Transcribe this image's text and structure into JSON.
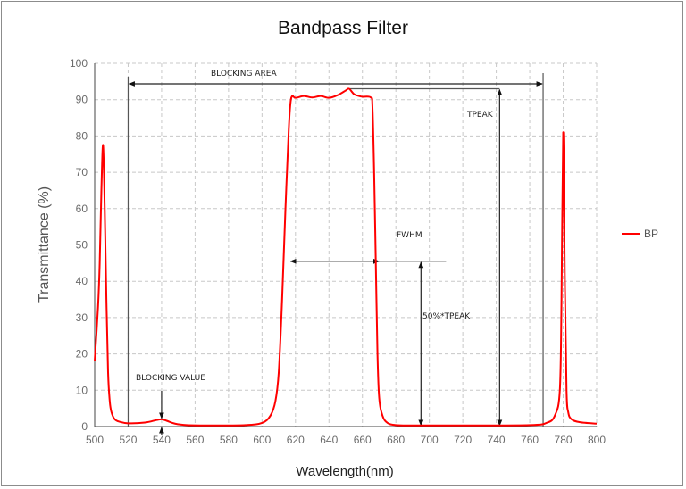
{
  "chart_data": {
    "type": "line",
    "title": "Bandpass Filter",
    "xlabel": "Wavelength(nm)",
    "ylabel": "Transmittance (%)",
    "xlim": [
      500,
      800
    ],
    "ylim": [
      0,
      100
    ],
    "xticks": [
      500,
      520,
      540,
      560,
      580,
      600,
      620,
      640,
      660,
      680,
      700,
      720,
      740,
      760,
      780,
      800
    ],
    "yticks": [
      0,
      10,
      20,
      30,
      40,
      50,
      60,
      70,
      80,
      90,
      100
    ],
    "grid": true,
    "legend": {
      "position": "right",
      "entries": [
        "BP"
      ]
    },
    "series": [
      {
        "name": "BP",
        "color": "#ff0000",
        "x": [
          500,
          502,
          503,
          504,
          505,
          506,
          507,
          508,
          509,
          510,
          512,
          515,
          520,
          530,
          537,
          540,
          543,
          548,
          555,
          570,
          590,
          600,
          605,
          608,
          610,
          612,
          614,
          616,
          617,
          618,
          620,
          625,
          630,
          635,
          640,
          645,
          650,
          652,
          655,
          658,
          660,
          665,
          666,
          667,
          668,
          669,
          670,
          672,
          675,
          680,
          690,
          720,
          760,
          770,
          775,
          778,
          779,
          780,
          781,
          782,
          783,
          785,
          790,
          800
        ],
        "y": [
          18,
          33,
          45,
          65,
          77.5,
          60,
          35,
          15,
          7,
          4,
          2,
          1.3,
          0.9,
          1.1,
          1.8,
          2.0,
          1.6,
          0.8,
          0.4,
          0.3,
          0.4,
          1.0,
          3,
          7,
          15,
          35,
          60,
          82,
          89,
          91,
          90.5,
          91,
          90.6,
          91,
          90.5,
          91.2,
          92.5,
          93,
          91.5,
          91,
          90.8,
          90.6,
          88,
          70,
          45,
          20,
          8,
          3,
          1,
          0.4,
          0.3,
          0.3,
          0.4,
          1,
          3,
          10,
          35,
          81,
          40,
          10,
          4,
          2,
          1.2,
          0.8
        ]
      }
    ],
    "annotations": [
      {
        "text": "BLOCKING AREA",
        "type": "double-arrow",
        "from": 520,
        "to": 768,
        "y": 94.5
      },
      {
        "text": "TPEAK",
        "type": "arrow",
        "x": 742,
        "from": 0,
        "to": 93
      },
      {
        "text": "FWHM",
        "type": "double-arrow",
        "from": 617,
        "to": 670,
        "y": 45.5
      },
      {
        "text": "50%*TPEAK",
        "type": "arrow",
        "x": 695,
        "from": 0,
        "to": 45.5
      },
      {
        "text": "BLOCKING VALUE",
        "type": "marker",
        "x": 540,
        "y": 2
      }
    ]
  },
  "labels": {
    "title": "Bandpass Filter",
    "xlabel": "Wavelength(nm)",
    "ylabel": "Transmittance (%)",
    "legend_bp": "BP",
    "blocking_area": "BLOCKING AREA",
    "tpeak": "TPEAK",
    "fwhm": "FWHM",
    "half_tpeak": "50%*TPEAK",
    "blocking_value": "BLOCKING VALUE"
  }
}
